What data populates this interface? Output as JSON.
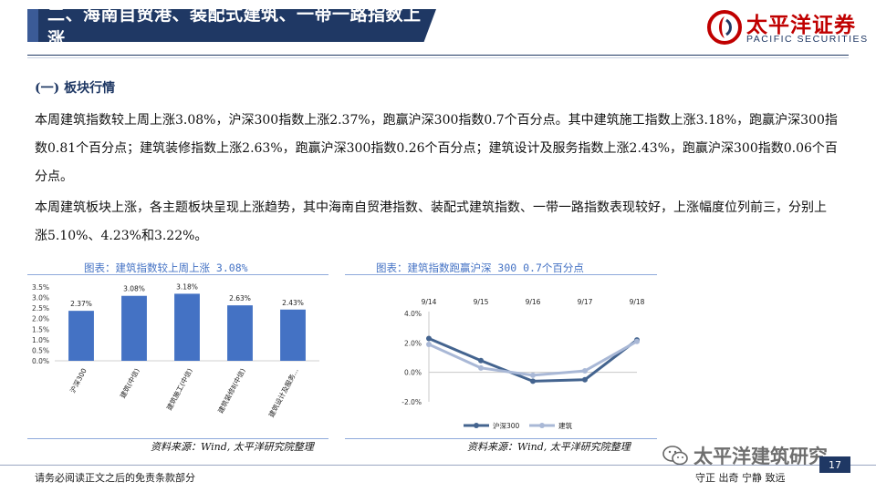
{
  "header": {
    "title": "二、海南自贸港、装配式建筑、一带一路指数上涨",
    "logo_cn": "太平洋证券",
    "logo_en": "PACIFIC SECURITIES"
  },
  "section": {
    "heading": "(一) 板块行情"
  },
  "paragraphs": {
    "p1": "本周建筑指数较上周上涨3.08%，沪深300指数上涨2.37%，跑赢沪深300指数0.7个百分点。其中建筑施工指数上涨3.18%，跑赢沪深300指数0.81个百分点；建筑装修指数上涨2.63%，跑赢沪深300指数0.26个百分点；建筑设计及服务指数上涨2.43%，跑赢沪深300指数0.06个百分点。",
    "p2": "本周建筑板块上涨，各主题板块呈现上涨趋势，其中海南自贸港指数、装配式建筑指数、一带一路指数表现较好，上涨幅度位列前三，分别上涨5.10%、4.23%和3.22%。"
  },
  "charts": {
    "left_title": "图表：建筑指数较上周上涨 3.08%",
    "left_source": "资料来源：Wind, 太平洋研究院整理",
    "right_title": "图表：建筑指数跑赢沪深 300 0.7个百分点",
    "right_source": "资料来源：Wind, 太平洋研究院整理"
  },
  "chart_data": [
    {
      "type": "bar",
      "categories": [
        "沪深300",
        "建筑(中信)",
        "建筑施工(中信)",
        "建筑装修Ⅱ(中信)",
        "建筑设计及服务..."
      ],
      "values": [
        2.37,
        3.08,
        3.18,
        2.63,
        2.43
      ],
      "data_labels": [
        "2.37%",
        "3.08%",
        "3.18%",
        "2.63%",
        "2.43%"
      ],
      "ylim": [
        0,
        3.5
      ],
      "yticks": [
        "0.0%",
        "0.5%",
        "1.0%",
        "1.5%",
        "2.0%",
        "2.5%",
        "3.0%",
        "3.5%"
      ],
      "color": "#4472c4",
      "grid": false
    },
    {
      "type": "line",
      "x": [
        "9/14",
        "9/15",
        "9/16",
        "9/17",
        "9/18"
      ],
      "series": [
        {
          "name": "沪深300",
          "values": [
            2.3,
            0.8,
            -0.6,
            -0.5,
            2.2
          ],
          "color": "#44648f"
        },
        {
          "name": "建筑",
          "values": [
            1.9,
            0.3,
            -0.2,
            0.1,
            2.1
          ],
          "color": "#a9b8d6"
        }
      ],
      "ylim": [
        -2.0,
        4.0
      ],
      "yticks": [
        "4.0%",
        "2.0%",
        "0.0%",
        "-2.0%"
      ],
      "legend": "bottom",
      "grid": false
    }
  ],
  "footer": {
    "disclaimer": "请务必阅读正文之后的免责条款部分",
    "motto": "守正  出奇  宁静  致远",
    "page": "17",
    "watermark": "太平洋建筑研究"
  }
}
